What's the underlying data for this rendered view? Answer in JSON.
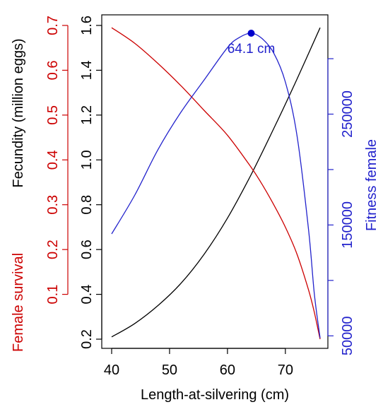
{
  "chart_data": {
    "type": "line",
    "xlabel": "Length-at-silvering (cm)",
    "xlim": [
      40,
      76
    ],
    "xticks": [
      40,
      50,
      60,
      70
    ],
    "axes": {
      "fecundity": {
        "label": "Fecundity (million eggs)",
        "color": "#000000",
        "ylim": [
          0.2,
          1.6
        ],
        "ticks": [
          "0.2",
          "0.4",
          "0.6",
          "0.8",
          "1.0",
          "1.2",
          "1.4",
          "1.6"
        ]
      },
      "survival": {
        "label": "Female survival",
        "color": "#cc0000",
        "ylim": [
          0.0,
          0.7
        ],
        "ticks": [
          "0.1",
          "0.2",
          "0.3",
          "0.4",
          "0.5",
          "0.6",
          "0.7"
        ]
      },
      "fitness": {
        "label": "Fitness female",
        "color": "#2222cc",
        "ylim": [
          47000,
          330000
        ],
        "ticks": [
          "50000",
          "150000",
          "250000"
        ]
      }
    },
    "series": [
      {
        "key": "fecundity",
        "color": "#000000",
        "x": [
          40,
          44,
          48,
          52,
          56,
          60,
          64,
          68,
          72,
          76
        ],
        "y": [
          0.21,
          0.27,
          0.35,
          0.45,
          0.58,
          0.74,
          0.93,
          1.14,
          1.36,
          1.59
        ]
      },
      {
        "key": "survival",
        "color": "#cc0000",
        "x": [
          40,
          44,
          48,
          52,
          56,
          60,
          64,
          66,
          68,
          70,
          72,
          74,
          75,
          76
        ],
        "y": [
          0.695,
          0.66,
          0.615,
          0.565,
          0.51,
          0.455,
          0.385,
          0.345,
          0.3,
          0.25,
          0.19,
          0.11,
          0.06,
          0.0
        ]
      },
      {
        "key": "fitness",
        "color": "#2222cc",
        "x": [
          40,
          44,
          48,
          52,
          56,
          60,
          62,
          64.1,
          66,
          68,
          70,
          72,
          74,
          75,
          76
        ],
        "y": [
          142000,
          177000,
          218000,
          252000,
          281000,
          310000,
          319000,
          323000,
          318000,
          305000,
          279000,
          231000,
          146000,
          88000,
          48000
        ]
      }
    ],
    "annotation": {
      "label": "64.1 cm",
      "x": 64.1,
      "y": 323000,
      "axis": "fitness"
    }
  }
}
